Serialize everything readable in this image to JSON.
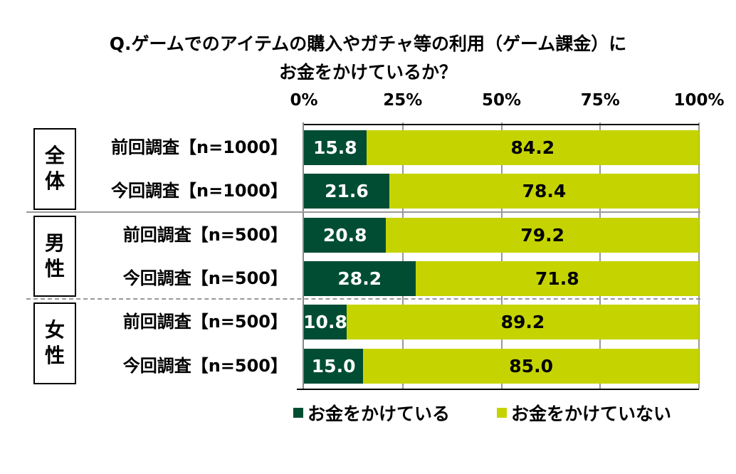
{
  "colors": {
    "spend": "#004d33",
    "nospend": "#c5d400"
  },
  "chart_data": {
    "type": "bar",
    "orientation": "horizontal-stacked-100",
    "title": [
      "Q.ゲームでのアイテムの購入やガチャ等の利用（ゲーム課金）に",
      "お金をかけているか？"
    ],
    "xlim": [
      0,
      100
    ],
    "xticks": [
      "0%",
      "25%",
      "50%",
      "75%",
      "100%"
    ],
    "groups": [
      {
        "label": [
          "全",
          "体"
        ],
        "rows": [
          {
            "label": "前回調査【n=1000】",
            "values": [
              15.8,
              84.2
            ]
          },
          {
            "label": "今回調査【n=1000】",
            "values": [
              21.6,
              78.4
            ]
          }
        ]
      },
      {
        "label": [
          "男",
          "性"
        ],
        "rows": [
          {
            "label": "前回調査【n=500】",
            "values": [
              20.8,
              79.2
            ]
          },
          {
            "label": "今回調査【n=500】",
            "values": [
              28.2,
              71.8
            ]
          }
        ]
      },
      {
        "label": [
          "女",
          "性"
        ],
        "rows": [
          {
            "label": "前回調査【n=500】",
            "values": [
              10.8,
              89.2
            ]
          },
          {
            "label": "今回調査【n=500】",
            "values": [
              15.0,
              85.0
            ]
          }
        ]
      }
    ],
    "series": [
      {
        "name": "お金をかけている"
      },
      {
        "name": "お金をかけていない"
      }
    ],
    "legend": "bottom"
  }
}
